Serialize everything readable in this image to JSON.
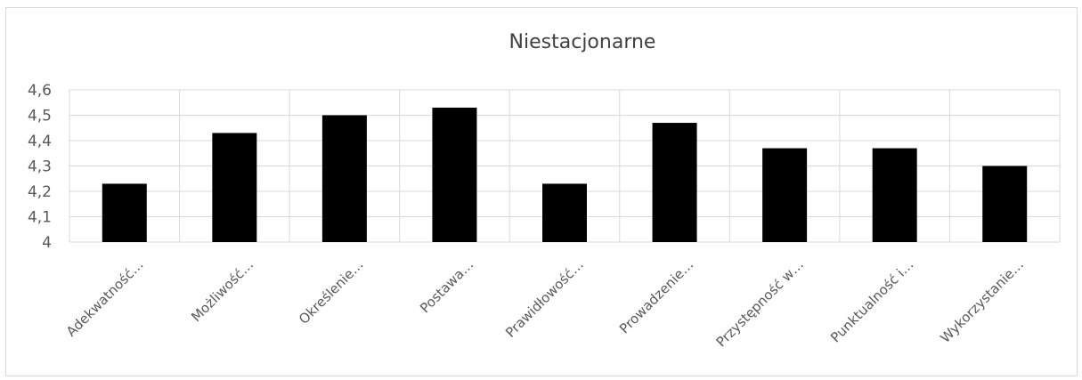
{
  "chart_data": {
    "type": "bar",
    "title": "Niestacjonarne",
    "xlabel": "",
    "ylabel": "",
    "ylim": [
      4,
      4.6
    ],
    "y_ticks": [
      "4",
      "4,1",
      "4,2",
      "4,3",
      "4,4",
      "4,5",
      "4,6"
    ],
    "y_tick_values": [
      4,
      4.1,
      4.2,
      4.3,
      4.4,
      4.5,
      4.6
    ],
    "categories": [
      "Adekwatność…",
      "Możliwość…",
      "Określenie…",
      "Postawa…",
      "Prawidłowość…",
      "Prowadzenie…",
      "Przystępność w…",
      "Punktualność i…",
      "Wykorzystanie…"
    ],
    "values": [
      4.23,
      4.43,
      4.5,
      4.53,
      4.23,
      4.47,
      4.37,
      4.37,
      4.3
    ],
    "grid": true,
    "legend": "none",
    "bar_color": "#000000",
    "grid_color": "#d9d9d9"
  }
}
